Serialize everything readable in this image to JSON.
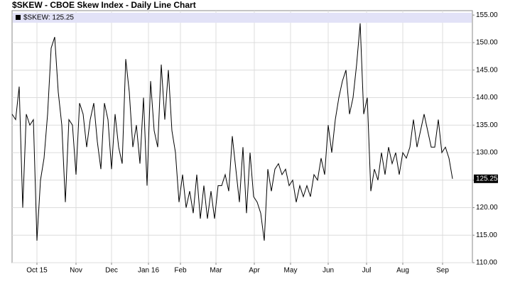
{
  "chart_data": {
    "type": "line",
    "title": "$SKEW - CBOE Skew Index - Daily Line Chart",
    "x": [
      0,
      1,
      2,
      3,
      4,
      5,
      6,
      7,
      8,
      9,
      10,
      11,
      12,
      13,
      14,
      15,
      16,
      17,
      18,
      19,
      20,
      21,
      22,
      23,
      24,
      25,
      26,
      27,
      28,
      29,
      30,
      31,
      32,
      33,
      34,
      35,
      36,
      37,
      38,
      39,
      40,
      41,
      42,
      43,
      44,
      45,
      46,
      47,
      48,
      49,
      50,
      51,
      52,
      53,
      54,
      55,
      56,
      57,
      58,
      59,
      60,
      61,
      62,
      63,
      64,
      65,
      66,
      67,
      68,
      69,
      70,
      71,
      72,
      73,
      74,
      75,
      76,
      77,
      78,
      79,
      80,
      81,
      82,
      83,
      84,
      85,
      86,
      87,
      88,
      89,
      90,
      91,
      92,
      93,
      94,
      95,
      96,
      97,
      98,
      99,
      100,
      101,
      102,
      103,
      104,
      105,
      106,
      107,
      108,
      109,
      110,
      111,
      112,
      113,
      114,
      115,
      116,
      117,
      118,
      119,
      120,
      121,
      122,
      123,
      124
    ],
    "series": [
      {
        "name": "$SKEW: 125.25",
        "color": "#000000",
        "values": [
          137,
          136,
          142,
          120,
          137,
          135,
          136,
          114,
          125,
          129,
          137,
          149,
          151,
          141,
          135,
          121,
          136,
          135,
          126,
          139,
          137,
          131,
          136,
          139,
          132,
          127,
          139,
          136,
          127,
          137,
          131,
          128,
          147,
          141,
          131,
          135,
          128,
          140,
          124,
          143,
          134,
          131,
          146,
          136,
          145,
          134,
          130,
          121,
          126,
          120,
          123,
          119,
          126,
          118,
          124,
          118,
          123,
          118,
          124,
          124,
          126,
          123,
          133,
          127,
          121,
          131,
          119,
          130,
          122,
          121,
          119,
          114,
          127,
          123,
          127,
          128,
          126,
          127,
          124,
          125,
          121,
          124,
          122,
          124,
          122,
          126,
          125,
          129,
          126,
          135,
          130,
          136,
          140,
          143,
          145,
          137,
          140,
          146,
          153.5,
          137,
          140,
          123,
          127,
          125,
          130,
          126,
          131,
          128,
          130,
          126,
          130,
          129,
          131,
          136,
          131,
          134,
          137,
          134,
          131,
          131,
          136,
          130,
          131,
          129,
          125.25
        ]
      }
    ],
    "last_value_label": "125.25",
    "xlim": [
      0,
      129.6
    ],
    "xticks": [
      {
        "value": 7,
        "label": "Oct 15"
      },
      {
        "value": 18,
        "label": "Nov"
      },
      {
        "value": 28,
        "label": "Dec"
      },
      {
        "value": 38.4,
        "label": "Jan 16"
      },
      {
        "value": 47.4,
        "label": "Feb"
      },
      {
        "value": 57.4,
        "label": "Mar"
      },
      {
        "value": 68.2,
        "label": "Apr"
      },
      {
        "value": 78.4,
        "label": "May"
      },
      {
        "value": 89,
        "label": "Jun"
      },
      {
        "value": 99.8,
        "label": "Jul"
      },
      {
        "value": 110,
        "label": "Aug"
      },
      {
        "value": 121.2,
        "label": "Sep"
      }
    ],
    "ylim": [
      110,
      155.8
    ],
    "yticks": [
      {
        "value": 110,
        "label": "110.00"
      },
      {
        "value": 115,
        "label": "115.00"
      },
      {
        "value": 120,
        "label": "120.00"
      },
      {
        "value": 125,
        "label": "125.00"
      },
      {
        "value": 130,
        "label": "130.00"
      },
      {
        "value": 135,
        "label": "135.00"
      },
      {
        "value": 140,
        "label": "140.00"
      },
      {
        "value": 145,
        "label": "145.00"
      },
      {
        "value": 150,
        "label": "150.00"
      },
      {
        "value": 155,
        "label": "155.00"
      }
    ],
    "grid": true
  }
}
